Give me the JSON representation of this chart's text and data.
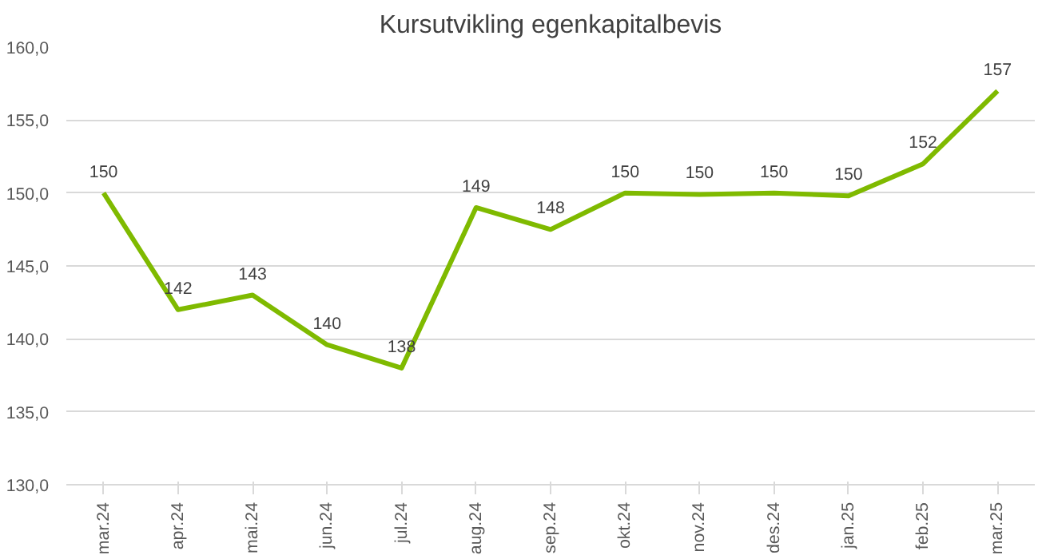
{
  "chart_data": {
    "type": "line",
    "title": "Kursutvikling egenkapitalbevis",
    "categories": [
      "mar.24",
      "apr.24",
      "mai.24",
      "jun.24",
      "jul.24",
      "aug.24",
      "sep.24",
      "okt.24",
      "nov.24",
      "des.24",
      "jan.25",
      "feb.25",
      "mar.25"
    ],
    "series": [
      {
        "color": "#7fba00",
        "values": [
          150,
          142,
          143,
          139.6,
          138,
          149,
          147.5,
          150,
          149.9,
          150,
          149.8,
          152,
          157
        ],
        "value_labels": [
          "150",
          "142",
          "143",
          "140",
          "138",
          "149",
          "148",
          "150",
          "150",
          "150",
          "150",
          "152",
          "157"
        ]
      }
    ],
    "ylim": [
      130,
      160
    ],
    "yticks": [
      {
        "value": 130,
        "label": "130,0"
      },
      {
        "value": 135,
        "label": "135,0"
      },
      {
        "value": 140,
        "label": "140,0"
      },
      {
        "value": 145,
        "label": "145,0"
      },
      {
        "value": 150,
        "label": "150,0"
      },
      {
        "value": 155,
        "label": "155,0"
      },
      {
        "value": 160,
        "label": "160,0"
      }
    ],
    "grid": "y",
    "marker": "none",
    "line_style": "solid"
  }
}
